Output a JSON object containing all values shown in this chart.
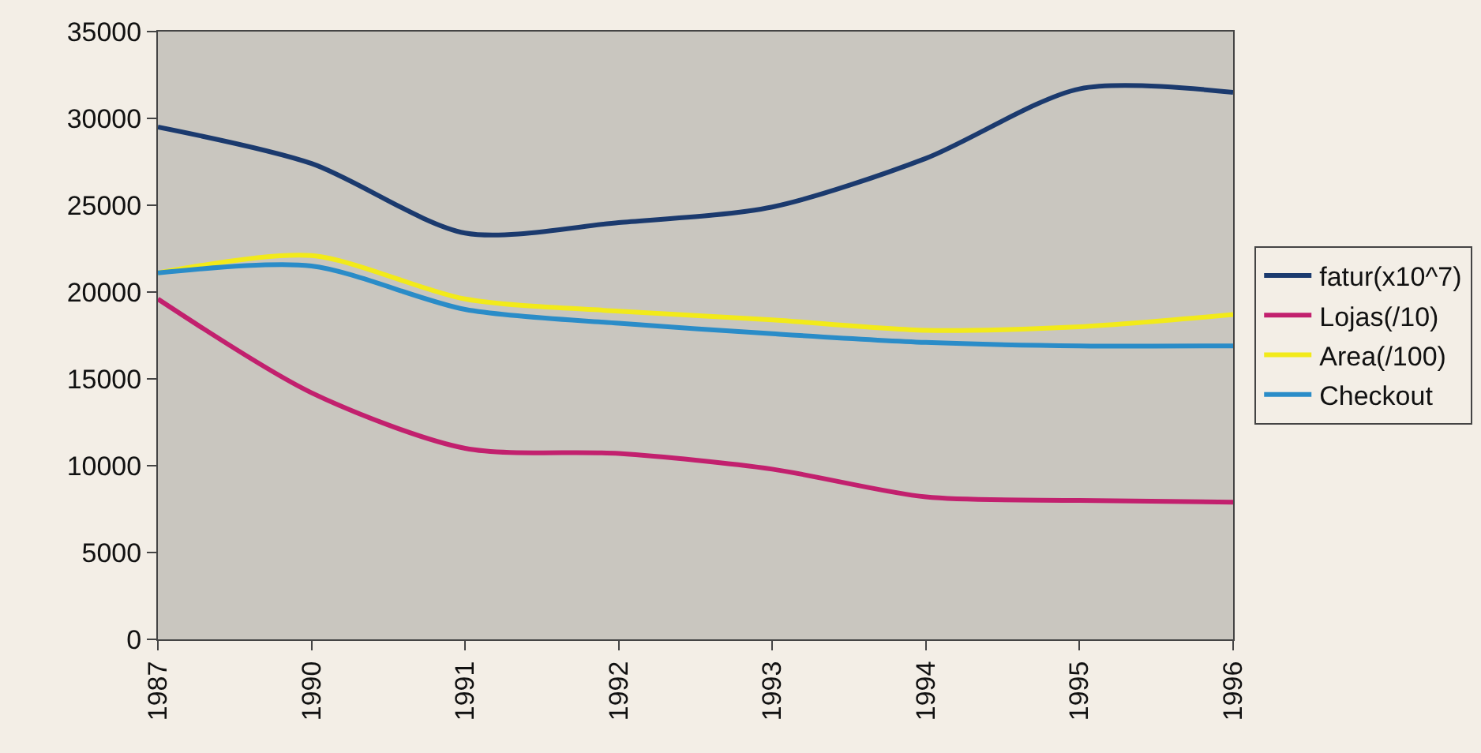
{
  "chart_data": {
    "type": "line",
    "categories": [
      "1987",
      "1990",
      "1991",
      "1992",
      "1993",
      "1994",
      "1995",
      "1996"
    ],
    "series": [
      {
        "name": "fatur(x10^7)",
        "color": "#1b3a6e",
        "values": [
          29500,
          27400,
          23400,
          24000,
          24900,
          27700,
          31700,
          31500
        ]
      },
      {
        "name": "Lojas(/10)",
        "color": "#c2206e",
        "values": [
          19600,
          14200,
          11000,
          10700,
          9800,
          8200,
          8000,
          7900
        ]
      },
      {
        "name": "Area(/100)",
        "color": "#f2ea1a",
        "values": [
          21100,
          22100,
          19600,
          18900,
          18400,
          17800,
          18000,
          18700
        ]
      },
      {
        "name": "Checkout",
        "color": "#2a8cc8",
        "values": [
          21100,
          21500,
          19000,
          18200,
          17600,
          17100,
          16900,
          16900
        ]
      }
    ],
    "ylim": [
      0,
      35000
    ],
    "yticks": [
      0,
      5000,
      10000,
      15000,
      20000,
      25000,
      30000,
      35000
    ],
    "grid": false,
    "legend": "right",
    "marker": "none",
    "line_style": "solid"
  }
}
